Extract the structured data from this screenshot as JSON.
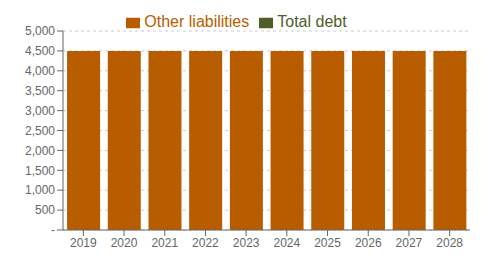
{
  "chart_data": {
    "type": "bar",
    "stacked": true,
    "categories": [
      "2019",
      "2020",
      "2021",
      "2022",
      "2023",
      "2024",
      "2025",
      "2026",
      "2027",
      "2028"
    ],
    "series": [
      {
        "name": "Other liabilities",
        "color": "#b85c00",
        "values": [
          4500,
          4500,
          4500,
          4500,
          4500,
          4500,
          4500,
          4500,
          4500,
          4500
        ]
      },
      {
        "name": "Total debt",
        "color": "#4d5e2a",
        "values": [
          0,
          0,
          0,
          0,
          0,
          0,
          0,
          0,
          0,
          0
        ]
      }
    ],
    "ylim": [
      0,
      5000
    ],
    "yticks": [
      {
        "value": 0,
        "label": "-"
      },
      500,
      {
        "value": 1000,
        "label": "1,000"
      },
      {
        "value": 1500,
        "label": "1,500"
      },
      {
        "value": 2000,
        "label": "2,000"
      },
      {
        "value": 2500,
        "label": "2,500"
      },
      {
        "value": 3000,
        "label": "3,000"
      },
      {
        "value": 3500,
        "label": "3,500"
      },
      {
        "value": 4000,
        "label": "4,000"
      },
      {
        "value": 4500,
        "label": "4,500"
      },
      {
        "value": 5000,
        "label": "5,000"
      }
    ],
    "grid": true,
    "legend": "top"
  }
}
